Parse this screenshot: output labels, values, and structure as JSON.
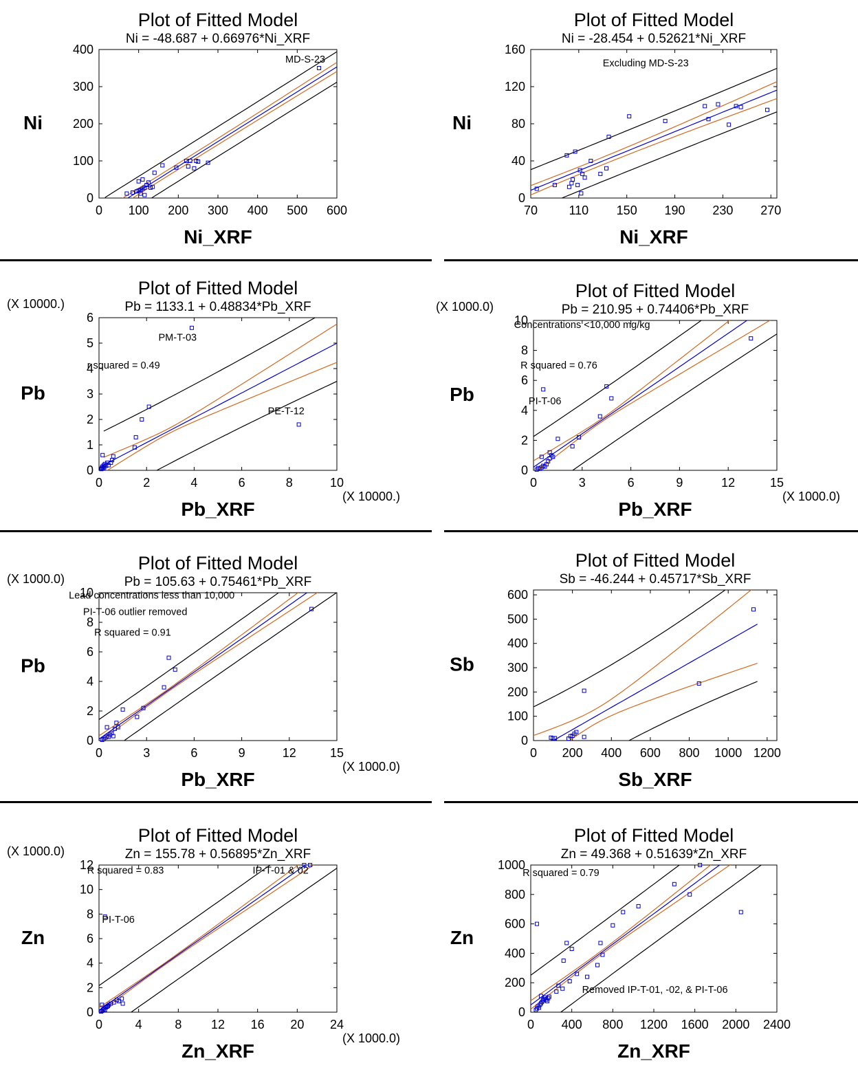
{
  "chart_data": [
    {
      "type": "scatter",
      "title": "Plot of Fitted Model",
      "subtitle": "Ni = -48.687 + 0.66976*Ni_XRF",
      "xlabel": "Ni_XRF",
      "ylabel": "Ni",
      "x_multiplier": "",
      "y_multiplier": "",
      "xlim": [
        0,
        600
      ],
      "ylim": [
        0,
        400
      ],
      "xticks": [
        0,
        100,
        200,
        300,
        400,
        500,
        600
      ],
      "yticks": [
        0,
        100,
        200,
        300,
        400
      ],
      "fit": {
        "intercept": -48.687,
        "slope": 0.66976
      },
      "bands": {
        "conf_half": 8,
        "conf_slope": 0.022,
        "pred_half": 40
      },
      "band_range": [
        15,
        600
      ],
      "annotations": [
        {
          "text": "MD-S-23",
          "x": 470,
          "y": 365
        }
      ],
      "points": [
        [
          70,
          12
        ],
        [
          85,
          15
        ],
        [
          95,
          18
        ],
        [
          100,
          20
        ],
        [
          100,
          45
        ],
        [
          105,
          22
        ],
        [
          105,
          12
        ],
        [
          110,
          50
        ],
        [
          110,
          25
        ],
        [
          115,
          8
        ],
        [
          115,
          28
        ],
        [
          120,
          35
        ],
        [
          125,
          42
        ],
        [
          130,
          28
        ],
        [
          135,
          30
        ],
        [
          140,
          68
        ],
        [
          160,
          88
        ],
        [
          195,
          82
        ],
        [
          220,
          100
        ],
        [
          225,
          85
        ],
        [
          230,
          100
        ],
        [
          240,
          80
        ],
        [
          245,
          100
        ],
        [
          250,
          98
        ],
        [
          275,
          95
        ],
        [
          555,
          350
        ]
      ]
    },
    {
      "type": "scatter",
      "title": "Plot of Fitted Model",
      "subtitle": "Ni = -28.454 + 0.52621*Ni_XRF",
      "xlabel": "Ni_XRF",
      "ylabel": "Ni",
      "x_multiplier": "",
      "y_multiplier": "",
      "xlim": [
        70,
        275
      ],
      "ylim": [
        0,
        160
      ],
      "xticks": [
        70,
        110,
        150,
        190,
        230,
        270
      ],
      "yticks": [
        0,
        40,
        80,
        120,
        160
      ],
      "fit": {
        "intercept": -28.454,
        "slope": 0.52621
      },
      "bands": {
        "conf_half": 4,
        "conf_slope": 0.055,
        "pred_half": 22
      },
      "band_range": [
        70,
        275
      ],
      "annotations": [
        {
          "text": "Excluding MD-S-23",
          "x": 130,
          "y": 142
        }
      ],
      "points": [
        [
          75,
          10
        ],
        [
          90,
          14
        ],
        [
          100,
          46
        ],
        [
          102,
          12
        ],
        [
          104,
          16
        ],
        [
          105,
          20
        ],
        [
          107,
          50
        ],
        [
          109,
          14
        ],
        [
          111,
          30
        ],
        [
          112,
          5
        ],
        [
          113,
          26
        ],
        [
          115,
          22
        ],
        [
          120,
          40
        ],
        [
          128,
          26
        ],
        [
          133,
          32
        ],
        [
          135,
          66
        ],
        [
          152,
          88
        ],
        [
          182,
          83
        ],
        [
          215,
          99
        ],
        [
          218,
          85
        ],
        [
          226,
          101
        ],
        [
          235,
          79
        ],
        [
          241,
          99
        ],
        [
          245,
          98
        ],
        [
          267,
          95
        ]
      ]
    },
    {
      "type": "scatter",
      "title": "Plot of Fitted Model",
      "subtitle": "Pb = 1133.1 + 0.48834*Pb_XRF",
      "xlabel": "Pb_XRF",
      "ylabel": "Pb",
      "x_multiplier": "(X 10000.)",
      "y_multiplier": "(X 10000.)",
      "xlim": [
        0,
        10
      ],
      "ylim": [
        0,
        6
      ],
      "xticks": [
        0,
        2,
        4,
        6,
        8,
        10
      ],
      "yticks": [
        0,
        1,
        2,
        3,
        4,
        5,
        6
      ],
      "fit": {
        "intercept": 0.11331,
        "slope": 0.48834
      },
      "bands": {
        "conf_half": 0.1,
        "conf_slope": 0.105,
        "pred_half": 1.3
      },
      "band_range": [
        0.2,
        10
      ],
      "annotations": [
        {
          "text": "PM-T-03",
          "x": 2.5,
          "y": 5.1
        },
        {
          "text": "r squared = 0.49",
          "x": -0.5,
          "y": 4
        },
        {
          "text": "PE-T-12",
          "x": 7.1,
          "y": 2.2
        }
      ],
      "points": [
        [
          0.1,
          0.05
        ],
        [
          0.12,
          0.1
        ],
        [
          0.15,
          0.15
        ],
        [
          0.18,
          0.08
        ],
        [
          0.2,
          0.2
        ],
        [
          0.22,
          0.12
        ],
        [
          0.25,
          0.25
        ],
        [
          0.3,
          0.18
        ],
        [
          0.35,
          0.3
        ],
        [
          0.4,
          0.2
        ],
        [
          0.15,
          0.6
        ],
        [
          0.5,
          0.3
        ],
        [
          0.55,
          0.4
        ],
        [
          0.6,
          0.55
        ],
        [
          1.5,
          0.9
        ],
        [
          1.55,
          1.3
        ],
        [
          1.8,
          2.0
        ],
        [
          2.1,
          2.5
        ],
        [
          3.9,
          5.6
        ],
        [
          8.4,
          1.8
        ]
      ]
    },
    {
      "type": "scatter",
      "title": "Plot of Fitted Model",
      "subtitle": "Pb = 210.95 + 0.74406*Pb_XRF",
      "xlabel": "Pb_XRF",
      "ylabel": "Pb",
      "x_multiplier": "(X 1000.0)",
      "y_multiplier": "(X 1000.0)",
      "xlim": [
        0,
        15
      ],
      "ylim": [
        0,
        10
      ],
      "xticks": [
        0,
        3,
        6,
        9,
        12,
        15
      ],
      "yticks": [
        0,
        2,
        4,
        6,
        8,
        10
      ],
      "fit": {
        "intercept": 0.21095,
        "slope": 0.74406
      },
      "bands": {
        "conf_half": 0.1,
        "conf_slope": 0.1,
        "pred_half": 2.0
      },
      "band_range": [
        0,
        15
      ],
      "annotations": [
        {
          "text": "Concentrations <10,000 mg/kg",
          "x": -1.2,
          "y": 9.5
        },
        {
          "text": "R squared = 0.76",
          "x": -0.8,
          "y": 6.8
        },
        {
          "text": "PI-T-06",
          "x": -0.3,
          "y": 4.4
        }
      ],
      "points": [
        [
          0.2,
          0.05
        ],
        [
          0.3,
          0.15
        ],
        [
          0.4,
          0.1
        ],
        [
          0.5,
          0.2
        ],
        [
          0.6,
          0.3
        ],
        [
          0.7,
          0.25
        ],
        [
          0.8,
          0.4
        ],
        [
          0.5,
          0.9
        ],
        [
          0.9,
          0.6
        ],
        [
          1.0,
          0.8
        ],
        [
          1.1,
          1.0
        ],
        [
          1.0,
          1.2
        ],
        [
          1.2,
          0.9
        ],
        [
          1.5,
          2.1
        ],
        [
          0.6,
          5.4
        ],
        [
          2.4,
          1.6
        ],
        [
          2.8,
          2.2
        ],
        [
          4.1,
          3.6
        ],
        [
          4.5,
          5.6
        ],
        [
          4.8,
          4.8
        ],
        [
          13.4,
          8.8
        ]
      ]
    },
    {
      "type": "scatter",
      "title": "Plot of Fitted Model",
      "subtitle": "Pb = 105.63 + 0.75461*Pb_XRF",
      "xlabel": "Pb_XRF",
      "ylabel": "Pb",
      "x_multiplier": "(X 1000.0)",
      "y_multiplier": "(X 1000.0)",
      "xlim": [
        0,
        15
      ],
      "ylim": [
        0,
        10
      ],
      "xticks": [
        0,
        3,
        6,
        9,
        12,
        15
      ],
      "yticks": [
        0,
        2,
        4,
        6,
        8,
        10
      ],
      "fit": {
        "intercept": 0.10563,
        "slope": 0.75461
      },
      "bands": {
        "conf_half": 0.08,
        "conf_slope": 0.05,
        "pred_half": 1.3
      },
      "band_range": [
        0,
        15
      ],
      "annotations": [
        {
          "text": "Lead concentrations less than 10,000",
          "x": -1.9,
          "y": 9.6
        },
        {
          "text": "PI-T-06 outlier removed",
          "x": -1.0,
          "y": 8.5
        },
        {
          "text": "R squared = 0.91",
          "x": -0.3,
          "y": 7.1
        }
      ],
      "points": [
        [
          0.2,
          0.05
        ],
        [
          0.3,
          0.1
        ],
        [
          0.4,
          0.2
        ],
        [
          0.5,
          0.3
        ],
        [
          0.6,
          0.25
        ],
        [
          0.7,
          0.4
        ],
        [
          0.5,
          0.9
        ],
        [
          0.8,
          0.5
        ],
        [
          0.9,
          0.3
        ],
        [
          1.0,
          0.8
        ],
        [
          1.1,
          1.2
        ],
        [
          1.2,
          0.9
        ],
        [
          1.5,
          2.1
        ],
        [
          2.4,
          1.6
        ],
        [
          2.8,
          2.2
        ],
        [
          4.1,
          3.6
        ],
        [
          4.4,
          5.6
        ],
        [
          4.8,
          4.8
        ],
        [
          13.4,
          8.9
        ]
      ]
    },
    {
      "type": "scatter",
      "title": "Plot of Fitted Model",
      "subtitle": "Sb = -46.244 + 0.45717*Sb_XRF",
      "xlabel": "Sb_XRF",
      "ylabel": "Sb",
      "x_multiplier": "",
      "y_multiplier": "",
      "xlim": [
        0,
        1250
      ],
      "ylim": [
        0,
        620
      ],
      "xticks": [
        0,
        200,
        400,
        600,
        800,
        1000,
        1200
      ],
      "yticks": [
        0,
        100,
        200,
        300,
        400,
        500,
        600
      ],
      "fit": {
        "intercept": -46.244,
        "slope": 0.45717
      },
      "bands": {
        "conf_half": 30,
        "conf_slope": 0.19,
        "pred_half": 175
      },
      "band_range": [
        0,
        1150
      ],
      "annotations": [],
      "points": [
        [
          90,
          12
        ],
        [
          100,
          10
        ],
        [
          110,
          10
        ],
        [
          180,
          8
        ],
        [
          190,
          18
        ],
        [
          200,
          20
        ],
        [
          210,
          28
        ],
        [
          220,
          35
        ],
        [
          260,
          15
        ],
        [
          260,
          205
        ],
        [
          850,
          235
        ],
        [
          1130,
          540
        ]
      ]
    },
    {
      "type": "scatter",
      "title": "Plot of Fitted Model",
      "subtitle": "Zn = 155.78 + 0.56895*Zn_XRF",
      "xlabel": "Zn_XRF",
      "ylabel": "Zn",
      "x_multiplier": "(X 1000.0)",
      "y_multiplier": "(X 1000.0)",
      "xlim": [
        0,
        24
      ],
      "ylim": [
        0,
        12
      ],
      "xticks": [
        0,
        4,
        8,
        12,
        16,
        20,
        24
      ],
      "yticks": [
        0,
        2,
        4,
        6,
        8,
        10,
        12
      ],
      "fit": {
        "intercept": 0.15578,
        "slope": 0.56895
      },
      "bands": {
        "conf_half": 0.08,
        "conf_slope": 0.03,
        "pred_half": 2.0
      },
      "band_range": [
        0,
        24
      ],
      "annotations": [
        {
          "text": "R squared = 0.83",
          "x": -1.2,
          "y": 11.3
        },
        {
          "text": "IP-T-01 & 02",
          "x": 15.5,
          "y": 11.3
        },
        {
          "text": "PI-T-06",
          "x": 0.3,
          "y": 7.3
        }
      ],
      "points": [
        [
          0.2,
          0.05
        ],
        [
          0.3,
          0.1
        ],
        [
          0.4,
          0.2
        ],
        [
          0.5,
          0.3
        ],
        [
          0.6,
          0.2
        ],
        [
          0.7,
          0.4
        ],
        [
          0.8,
          0.45
        ],
        [
          0.3,
          0.6
        ],
        [
          0.9,
          0.5
        ],
        [
          1.0,
          0.6
        ],
        [
          1.2,
          0.7
        ],
        [
          1.5,
          0.8
        ],
        [
          1.8,
          1.0
        ],
        [
          2.0,
          0.9
        ],
        [
          2.3,
          1.1
        ],
        [
          2.4,
          0.7
        ],
        [
          0.6,
          7.8
        ],
        [
          20.7,
          12.0
        ],
        [
          21.3,
          12.0
        ]
      ]
    },
    {
      "type": "scatter",
      "title": "Plot of Fitted Model",
      "subtitle": "Zn = 49.368 + 0.51639*Zn_XRF",
      "xlabel": "Zn_XRF",
      "ylabel": "Zn",
      "x_multiplier": "",
      "y_multiplier": "",
      "xlim": [
        0,
        2400
      ],
      "ylim": [
        0,
        1000
      ],
      "xticks": [
        0,
        400,
        800,
        1200,
        1600,
        2000,
        2400
      ],
      "yticks": [
        0,
        200,
        400,
        600,
        800,
        1000
      ],
      "fit": {
        "intercept": 49.368,
        "slope": 0.51639
      },
      "bands": {
        "conf_half": 12,
        "conf_slope": 0.04,
        "pred_half": 200
      },
      "band_range": [
        0,
        2400
      ],
      "annotations": [
        {
          "text": "R squared = 0.79",
          "x": -80,
          "y": 925
        },
        {
          "text": "Removed IP-T-01, -02, & PI-T-06",
          "x": 500,
          "y": 130
        }
      ],
      "points": [
        [
          50,
          15
        ],
        [
          60,
          25
        ],
        [
          70,
          40
        ],
        [
          80,
          30
        ],
        [
          90,
          50
        ],
        [
          100,
          60
        ],
        [
          110,
          70
        ],
        [
          120,
          80
        ],
        [
          130,
          90
        ],
        [
          100,
          110
        ],
        [
          140,
          100
        ],
        [
          150,
          85
        ],
        [
          160,
          75
        ],
        [
          170,
          95
        ],
        [
          180,
          105
        ],
        [
          60,
          600
        ],
        [
          250,
          140
        ],
        [
          270,
          180
        ],
        [
          310,
          160
        ],
        [
          320,
          350
        ],
        [
          350,
          470
        ],
        [
          400,
          430
        ],
        [
          380,
          210
        ],
        [
          450,
          260
        ],
        [
          550,
          240
        ],
        [
          650,
          320
        ],
        [
          700,
          390
        ],
        [
          680,
          470
        ],
        [
          800,
          590
        ],
        [
          900,
          680
        ],
        [
          1050,
          720
        ],
        [
          1400,
          870
        ],
        [
          1550,
          800
        ],
        [
          1650,
          1000
        ],
        [
          2050,
          680
        ]
      ]
    }
  ]
}
